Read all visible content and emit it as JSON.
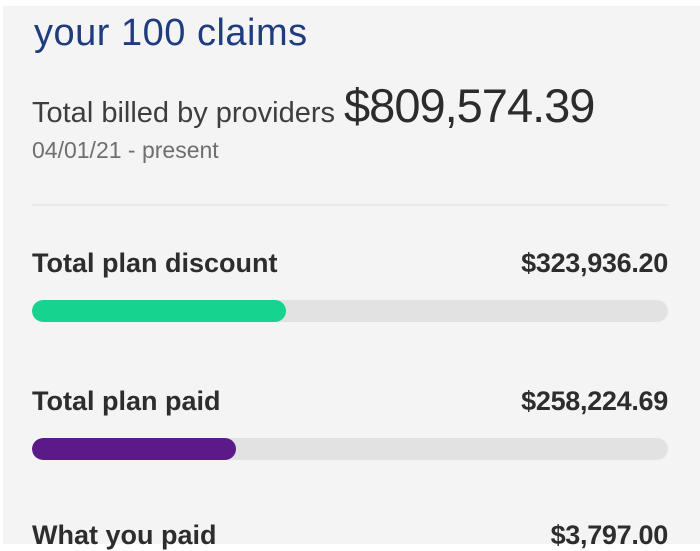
{
  "header": {
    "title": "your 100 claims"
  },
  "summary": {
    "label": "Total billed by providers",
    "amount": "$809,574.39",
    "period": "04/01/21 - present"
  },
  "rows": [
    {
      "label": "Total plan discount",
      "value": "$323,936.20",
      "bar_percent": "40%",
      "bar_color": "#17d390"
    },
    {
      "label": "Total plan paid",
      "value": "$258,224.69",
      "bar_percent": "32%",
      "bar_color": "#5b1a87"
    },
    {
      "label": "What you paid",
      "value": "$3,797.00"
    }
  ],
  "colors": {
    "title_navy": "#1e3c7e",
    "bar_track_gray": "#e2e2e2",
    "panel_background": "#f4f4f5",
    "text_dark": "#2d2d2d",
    "text_muted": "#6f6f6f"
  }
}
